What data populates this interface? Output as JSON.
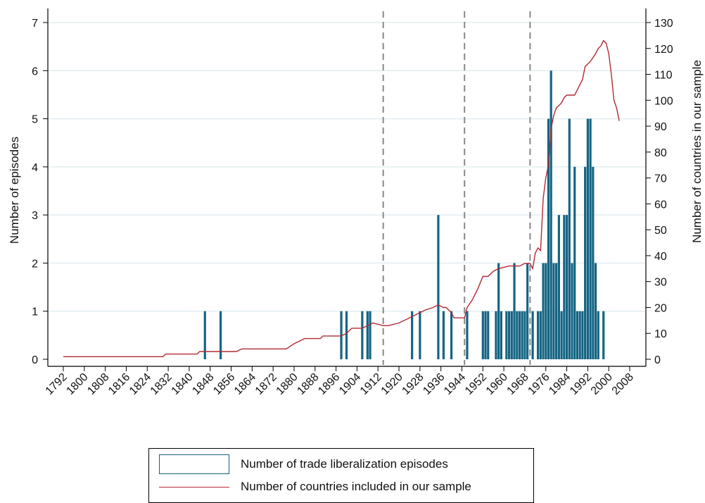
{
  "chart_data": {
    "type": "bar",
    "y_left": {
      "label": "Number of episodes",
      "lim": [
        0,
        7
      ],
      "ticks": [
        0,
        1,
        2,
        3,
        4,
        5,
        6,
        7
      ]
    },
    "y_right": {
      "label": "Number of countries in our sample",
      "lim": [
        0,
        130
      ],
      "ticks": [
        0,
        10,
        20,
        30,
        40,
        50,
        60,
        70,
        80,
        90,
        100,
        110,
        120,
        130
      ]
    },
    "x_axis": {
      "lim": [
        1792,
        2008
      ],
      "ticks": [
        1792,
        1800,
        1808,
        1816,
        1824,
        1832,
        1840,
        1848,
        1856,
        1864,
        1872,
        1880,
        1888,
        1896,
        1904,
        1912,
        1920,
        1928,
        1936,
        1944,
        1952,
        1960,
        1968,
        1976,
        1984,
        1992,
        2000,
        2008
      ]
    },
    "vertical_lines": [
      1914,
      1945,
      1970
    ],
    "grid": true,
    "colors": {
      "bars": "#156483",
      "line": "#b22a33",
      "grid": "#e2eef0",
      "vline": "#888888"
    },
    "series": [
      {
        "name": "Number of trade liberalization episodes",
        "type": "bar",
        "axis": "left",
        "points": [
          [
            1846,
            1
          ],
          [
            1852,
            1
          ],
          [
            1898,
            1
          ],
          [
            1900,
            1
          ],
          [
            1906,
            1
          ],
          [
            1908,
            1
          ],
          [
            1909,
            1
          ],
          [
            1925,
            1
          ],
          [
            1928,
            1
          ],
          [
            1935,
            3
          ],
          [
            1937,
            1
          ],
          [
            1940,
            1
          ],
          [
            1946,
            1
          ],
          [
            1952,
            1
          ],
          [
            1953,
            1
          ],
          [
            1954,
            1
          ],
          [
            1957,
            1
          ],
          [
            1958,
            2
          ],
          [
            1959,
            1
          ],
          [
            1961,
            1
          ],
          [
            1962,
            1
          ],
          [
            1963,
            1
          ],
          [
            1964,
            2
          ],
          [
            1965,
            1
          ],
          [
            1966,
            1
          ],
          [
            1967,
            1
          ],
          [
            1968,
            1
          ],
          [
            1969,
            2
          ],
          [
            1971,
            1
          ],
          [
            1973,
            1
          ],
          [
            1974,
            1
          ],
          [
            1975,
            2
          ],
          [
            1976,
            2
          ],
          [
            1977,
            5
          ],
          [
            1978,
            6
          ],
          [
            1979,
            2
          ],
          [
            1980,
            2
          ],
          [
            1981,
            3
          ],
          [
            1982,
            1
          ],
          [
            1983,
            3
          ],
          [
            1984,
            3
          ],
          [
            1985,
            5
          ],
          [
            1986,
            2
          ],
          [
            1987,
            4
          ],
          [
            1988,
            1
          ],
          [
            1989,
            1
          ],
          [
            1990,
            1
          ],
          [
            1991,
            4
          ],
          [
            1992,
            5
          ],
          [
            1993,
            5
          ],
          [
            1994,
            4
          ],
          [
            1995,
            2
          ],
          [
            1996,
            1
          ],
          [
            1998,
            1
          ]
        ]
      },
      {
        "name": "Number of countries included in our sample",
        "type": "line",
        "axis": "right",
        "points": [
          [
            1792,
            1
          ],
          [
            1830,
            1
          ],
          [
            1831,
            2
          ],
          [
            1843,
            2
          ],
          [
            1844,
            3
          ],
          [
            1858,
            3
          ],
          [
            1860,
            4
          ],
          [
            1877,
            4
          ],
          [
            1880,
            6
          ],
          [
            1882,
            7
          ],
          [
            1884,
            8
          ],
          [
            1890,
            8
          ],
          [
            1891,
            9
          ],
          [
            1898,
            9
          ],
          [
            1900,
            10
          ],
          [
            1902,
            12
          ],
          [
            1906,
            12
          ],
          [
            1908,
            13
          ],
          [
            1910,
            14
          ],
          [
            1914,
            13
          ],
          [
            1916,
            13
          ],
          [
            1920,
            14
          ],
          [
            1924,
            16
          ],
          [
            1926,
            17
          ],
          [
            1930,
            19
          ],
          [
            1933,
            20
          ],
          [
            1935,
            21
          ],
          [
            1937,
            20
          ],
          [
            1938,
            20
          ],
          [
            1940,
            18
          ],
          [
            1941,
            16
          ],
          [
            1943,
            16
          ],
          [
            1945,
            16
          ],
          [
            1946,
            20
          ],
          [
            1948,
            23
          ],
          [
            1950,
            27
          ],
          [
            1952,
            32
          ],
          [
            1954,
            32
          ],
          [
            1956,
            34
          ],
          [
            1958,
            35
          ],
          [
            1962,
            36
          ],
          [
            1966,
            36
          ],
          [
            1968,
            37
          ],
          [
            1970,
            37
          ],
          [
            1971,
            35
          ],
          [
            1972,
            41
          ],
          [
            1973,
            43
          ],
          [
            1974,
            42
          ],
          [
            1975,
            62
          ],
          [
            1976,
            70
          ],
          [
            1977,
            75
          ],
          [
            1978,
            89
          ],
          [
            1979,
            94
          ],
          [
            1980,
            97
          ],
          [
            1981,
            98
          ],
          [
            1982,
            99
          ],
          [
            1983,
            101
          ],
          [
            1984,
            102
          ],
          [
            1987,
            102
          ],
          [
            1988,
            104
          ],
          [
            1990,
            108
          ],
          [
            1991,
            113
          ],
          [
            1993,
            115
          ],
          [
            1995,
            118
          ],
          [
            1996,
            120
          ],
          [
            1997,
            121
          ],
          [
            1998,
            123
          ],
          [
            1999,
            122
          ],
          [
            2000,
            118
          ],
          [
            2001,
            110
          ],
          [
            2002,
            100
          ],
          [
            2003,
            97
          ],
          [
            2004,
            92
          ]
        ]
      }
    ]
  },
  "legend": {
    "bars_label": "Number of trade liberalization episodes",
    "line_label": "Number of countries included in our sample"
  }
}
